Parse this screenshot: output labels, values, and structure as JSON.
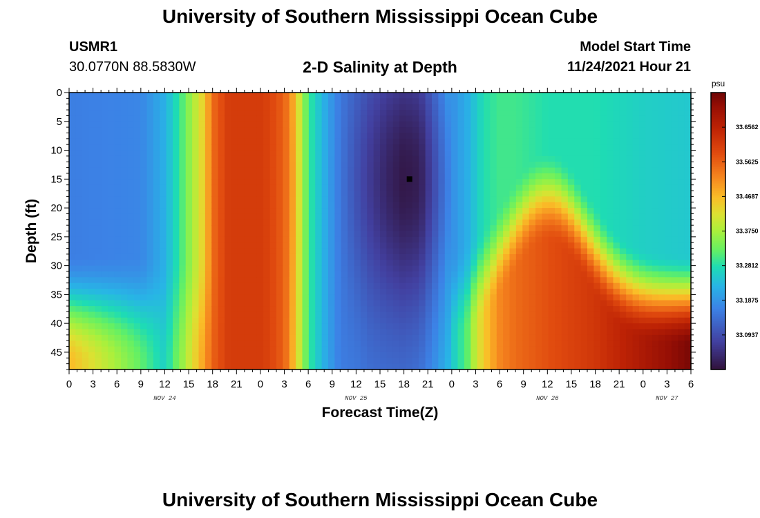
{
  "page": {
    "title": "University of Southern Mississippi Ocean Cube",
    "title_repeat": "University of Southern Mississippi Ocean Cube",
    "station_id": "USMR1",
    "station_coords": "30.0770N  88.5830W",
    "subtitle": "2-D Salinity at Depth",
    "model_start_label": "Model Start Time",
    "model_start_value": "11/24/2021 Hour 21"
  },
  "chart_data": {
    "type": "heatmap",
    "title": "2-D Salinity at Depth",
    "xlabel": "Forecast Time(Z)",
    "ylabel": "Depth (ft)",
    "x_range_hours": [
      0,
      78
    ],
    "y_range_ft": [
      0,
      48
    ],
    "y_inverted": true,
    "x_ticks": [
      {
        "h": 0,
        "label": "0"
      },
      {
        "h": 3,
        "label": "3"
      },
      {
        "h": 6,
        "label": "6"
      },
      {
        "h": 9,
        "label": "9"
      },
      {
        "h": 12,
        "label": "12"
      },
      {
        "h": 15,
        "label": "15"
      },
      {
        "h": 18,
        "label": "18"
      },
      {
        "h": 21,
        "label": "21"
      },
      {
        "h": 24,
        "label": "0"
      },
      {
        "h": 27,
        "label": "3"
      },
      {
        "h": 30,
        "label": "6"
      },
      {
        "h": 33,
        "label": "9"
      },
      {
        "h": 36,
        "label": "12"
      },
      {
        "h": 39,
        "label": "15"
      },
      {
        "h": 42,
        "label": "18"
      },
      {
        "h": 45,
        "label": "21"
      },
      {
        "h": 48,
        "label": "0"
      },
      {
        "h": 51,
        "label": "3"
      },
      {
        "h": 54,
        "label": "6"
      },
      {
        "h": 57,
        "label": "9"
      },
      {
        "h": 60,
        "label": "12"
      },
      {
        "h": 63,
        "label": "15"
      },
      {
        "h": 66,
        "label": "18"
      },
      {
        "h": 69,
        "label": "21"
      },
      {
        "h": 72,
        "label": "0"
      },
      {
        "h": 75,
        "label": "3"
      },
      {
        "h": 78,
        "label": "6"
      }
    ],
    "date_labels": [
      {
        "h": 12,
        "label": "NOV 24"
      },
      {
        "h": 36,
        "label": "NOV 25"
      },
      {
        "h": 60,
        "label": "NOV 26"
      },
      {
        "h": 75,
        "label": "NOV 27"
      }
    ],
    "y_ticks": [
      0,
      5,
      10,
      15,
      20,
      25,
      30,
      35,
      40,
      45
    ],
    "colorbar": {
      "unit": "psu",
      "min": 33.0,
      "max": 33.75,
      "tick_values": [
        33.0937,
        33.1875,
        33.2812,
        33.375,
        33.4687,
        33.5625,
        33.6562
      ],
      "tick_labels": [
        "33.0937",
        "33.1875",
        "33.2812",
        "33.3750",
        "33.4687",
        "33.5625",
        "33.6562"
      ]
    },
    "marker": {
      "hour": 42.7,
      "depth_ft": 15
    },
    "profile": {
      "time_nodes_h": [
        0,
        9,
        12,
        14,
        16,
        17,
        18,
        20,
        24,
        25,
        27,
        28,
        30,
        32,
        34,
        36,
        38,
        40,
        42,
        44,
        46,
        48,
        50,
        51,
        52,
        54,
        56,
        60,
        66,
        72,
        78
      ],
      "surface_psu": [
        33.16,
        33.17,
        33.22,
        33.3,
        33.4,
        33.45,
        33.55,
        33.61,
        33.61,
        33.6,
        33.56,
        33.5,
        33.3,
        33.22,
        33.15,
        33.1,
        33.06,
        33.03,
        33.01,
        33.02,
        33.1,
        33.18,
        33.22,
        33.25,
        33.28,
        33.3,
        33.3,
        33.28,
        33.28,
        33.26,
        33.25
      ],
      "bottom_psu": [
        33.47,
        33.32,
        33.26,
        33.35,
        33.45,
        33.5,
        33.56,
        33.61,
        33.61,
        33.6,
        33.56,
        33.48,
        33.3,
        33.22,
        33.16,
        33.16,
        33.15,
        33.15,
        33.15,
        33.16,
        33.2,
        33.25,
        33.32,
        33.4,
        33.45,
        33.52,
        33.55,
        33.58,
        33.62,
        33.68,
        33.74
      ]
    }
  }
}
